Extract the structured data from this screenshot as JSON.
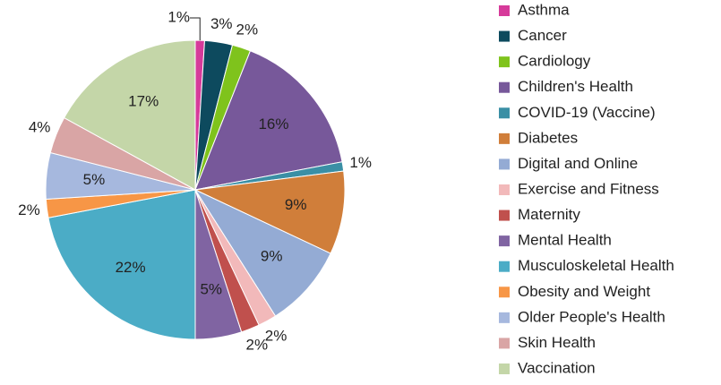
{
  "chart_data": {
    "type": "pie",
    "categories": [
      "Asthma",
      "Cancer",
      "Cardiology",
      "Children's Health",
      "COVID-19 (Vaccine)",
      "Diabetes",
      "Digital and Online",
      "Exercise and Fitness",
      "Maternity",
      "Mental Health",
      "Musculoskeletal Health",
      "Obesity and Weight",
      "Older People's Health",
      "Skin Health",
      "Vaccination"
    ],
    "values": [
      1,
      3,
      2,
      16,
      1,
      9,
      9,
      2,
      2,
      5,
      22,
      2,
      5,
      4,
      17
    ],
    "value_labels": [
      "1%",
      "3%",
      "2%",
      "16%",
      "1%",
      "9%",
      "9%",
      "2%",
      "2%",
      "5%",
      "22%",
      "2%",
      "5%",
      "4%",
      "17%"
    ],
    "colors": [
      "#d63a9a",
      "#0d4a5e",
      "#7fc31c",
      "#77589a",
      "#3a8fa5",
      "#d07e3a",
      "#94abd4",
      "#f2b9ba",
      "#c0504d",
      "#8064a2",
      "#4bacc6",
      "#f79646",
      "#a6b8de",
      "#d9a5a5",
      "#c4d6a8"
    ],
    "legend": "right"
  }
}
